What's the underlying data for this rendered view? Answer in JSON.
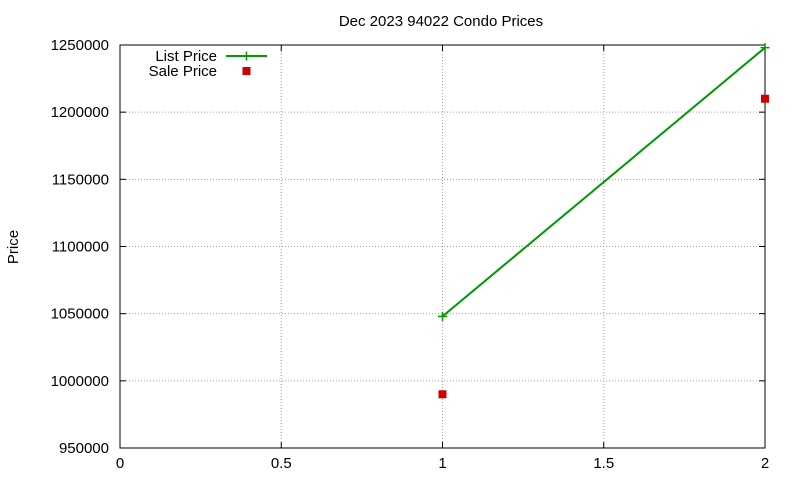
{
  "chart_data": {
    "type": "line",
    "title": "Dec 2023 94022 Condo Prices",
    "xlabel": "",
    "ylabel": "Price",
    "xlim": [
      0,
      2
    ],
    "ylim": [
      950000,
      1250000
    ],
    "x_ticks": [
      0,
      0.5,
      1,
      1.5,
      2
    ],
    "x_tick_labels": [
      "0",
      "0.5",
      "1",
      "1.5",
      "2"
    ],
    "y_ticks": [
      950000,
      1000000,
      1050000,
      1100000,
      1150000,
      1200000,
      1250000
    ],
    "y_tick_labels": [
      "950000",
      "1000000",
      "1050000",
      "1100000",
      "1150000",
      "1200000",
      "1250000"
    ],
    "grid": true,
    "legend_position": "top-left",
    "series": [
      {
        "name": "List Price",
        "style": "linespoints",
        "marker": "plus",
        "color": "#009900",
        "x": [
          1,
          2
        ],
        "y": [
          1048000,
          1248000
        ]
      },
      {
        "name": "Sale Price",
        "style": "points",
        "marker": "square",
        "color": "#cc0000",
        "x": [
          1,
          2
        ],
        "y": [
          990000,
          1210000
        ]
      }
    ]
  }
}
